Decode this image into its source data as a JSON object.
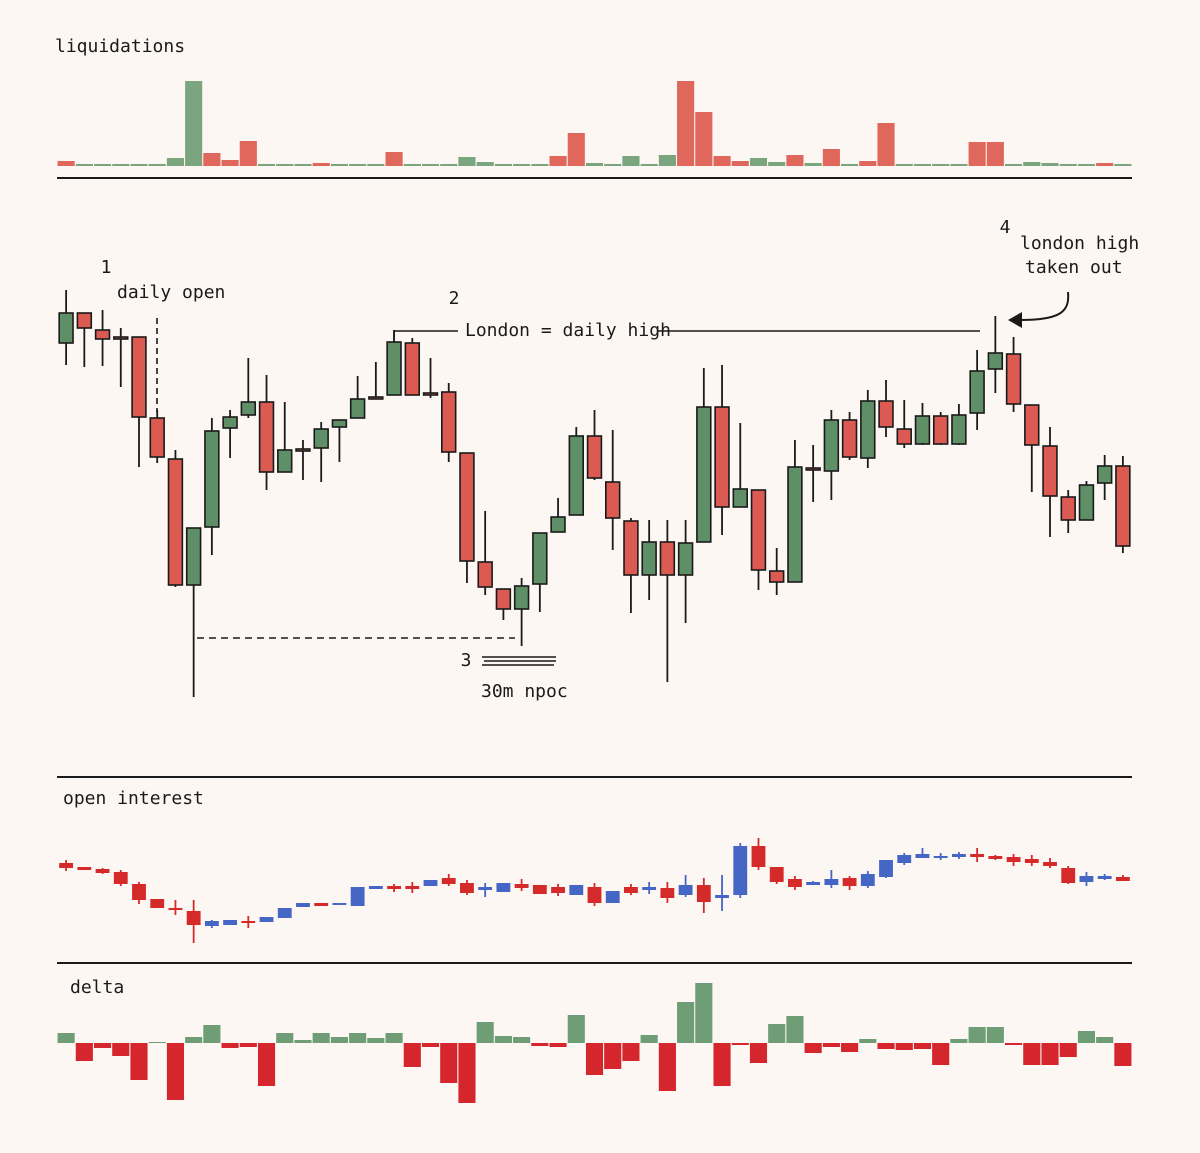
{
  "chart_data": [
    {
      "type": "bar",
      "title": "liquidations",
      "values": [
        5,
        2,
        2,
        2,
        2,
        2,
        8,
        85,
        13,
        6,
        25,
        2,
        2,
        2,
        3,
        2,
        2,
        2,
        14,
        2,
        2,
        2,
        9,
        4,
        2,
        2,
        2,
        10,
        33,
        3,
        2,
        10,
        2,
        11,
        85,
        54,
        10,
        5,
        8,
        4,
        11,
        3,
        17,
        2,
        5,
        43,
        2,
        2,
        2,
        2,
        24,
        24,
        2,
        4,
        3,
        2,
        2,
        3,
        2
      ],
      "colors": [
        "#e0675c",
        "#7aa57e",
        "#7aa57e",
        "#7aa57e",
        "#7aa57e",
        "#7aa57e",
        "#7aa57e",
        "#7aa57e",
        "#e0675c",
        "#e0675c",
        "#e0675c",
        "#7aa57e",
        "#7aa57e",
        "#7aa57e",
        "#e0675c",
        "#7aa57e",
        "#7aa57e",
        "#7aa57e",
        "#e0675c",
        "#7aa57e",
        "#7aa57e",
        "#7aa57e",
        "#7aa57e",
        "#7aa57e",
        "#7aa57e",
        "#7aa57e",
        "#7aa57e",
        "#e0675c",
        "#e0675c",
        "#7aa57e",
        "#7aa57e",
        "#7aa57e",
        "#7aa57e",
        "#7aa57e",
        "#e0675c",
        "#e0675c",
        "#e0675c",
        "#e0675c",
        "#7aa57e",
        "#7aa57e",
        "#e0675c",
        "#7aa57e",
        "#e0675c",
        "#7aa57e",
        "#e0675c",
        "#e0675c",
        "#7aa57e",
        "#7aa57e",
        "#7aa57e",
        "#7aa57e",
        "#e0675c",
        "#e0675c",
        "#7aa57e",
        "#7aa57e",
        "#7aa57e",
        "#7aa57e",
        "#7aa57e",
        "#e0675c",
        "#7aa57e"
      ],
      "ylim": [
        0,
        85
      ]
    },
    {
      "type": "candlestick",
      "open": [
        657,
        687,
        670,
        663,
        663,
        582,
        541,
        415,
        473,
        572,
        585,
        598,
        528,
        551,
        552,
        573,
        582,
        603,
        605,
        657,
        607,
        608,
        547,
        438,
        411,
        391,
        416,
        468,
        485,
        564,
        518,
        479,
        425,
        458,
        425,
        458,
        593,
        493,
        510,
        429,
        418,
        532,
        529,
        580,
        542,
        599,
        571,
        556,
        584,
        556,
        587,
        631,
        646,
        595,
        554,
        503,
        480,
        517,
        534
      ],
      "close": [
        687,
        672,
        661,
        661,
        583,
        543,
        415,
        472,
        569,
        583,
        598,
        528,
        550,
        549,
        571,
        580,
        601,
        601,
        658,
        605,
        605,
        548,
        439,
        413,
        391,
        414,
        467,
        483,
        564,
        522,
        482,
        425,
        458,
        425,
        457,
        593,
        493,
        511,
        430,
        418,
        533,
        530,
        580,
        543,
        599,
        573,
        556,
        584,
        556,
        585,
        629,
        647,
        596,
        555,
        504,
        480,
        515,
        534,
        454
      ],
      "high": [
        710,
        687,
        690,
        672,
        663,
        590,
        550,
        472,
        582,
        590,
        642,
        625,
        598,
        560,
        578,
        580,
        624,
        638,
        670,
        662,
        642,
        617,
        547,
        489,
        411,
        422,
        467,
        502,
        573,
        590,
        570,
        482,
        480,
        480,
        480,
        632,
        635,
        577,
        510,
        452,
        560,
        555,
        590,
        588,
        610,
        620,
        600,
        597,
        588,
        596,
        650,
        684,
        663,
        595,
        573,
        510,
        519,
        545,
        544
      ],
      "low": [
        635,
        633,
        634,
        613,
        533,
        537,
        413,
        303,
        445,
        542,
        582,
        510,
        528,
        520,
        518,
        538,
        582,
        601,
        605,
        605,
        602,
        538,
        417,
        405,
        380,
        354,
        388,
        468,
        485,
        520,
        450,
        387,
        400,
        318,
        377,
        458,
        465,
        493,
        410,
        405,
        418,
        498,
        500,
        540,
        532,
        563,
        552,
        555,
        555,
        555,
        570,
        607,
        588,
        508,
        463,
        467,
        480,
        500,
        447
      ],
      "up_color": "#5f8f67",
      "down_color": "#db5a52",
      "ylim": [
        280,
        720
      ],
      "annotations": [
        "1",
        "daily open",
        "2",
        "London = daily high",
        "3",
        "30m npoc",
        "4",
        "london high",
        "taken out"
      ]
    },
    {
      "type": "candlestick",
      "title": "open interest",
      "open": [
        137,
        133,
        131,
        128,
        116,
        101,
        92,
        89,
        74,
        75,
        79,
        78,
        82,
        93,
        97,
        95,
        94,
        111,
        114,
        114,
        114,
        122,
        117,
        110,
        108,
        116,
        115,
        113,
        105,
        113,
        97,
        113,
        110,
        112,
        105,
        115,
        102,
        105,
        154,
        133,
        121,
        115,
        115,
        122,
        114,
        123,
        137,
        142,
        142,
        143,
        146,
        144,
        143,
        141,
        138,
        132,
        118,
        121,
        123
      ],
      "close": [
        132,
        130,
        127,
        116,
        100,
        92,
        90,
        75,
        79,
        80,
        77,
        83,
        92,
        97,
        94,
        97,
        113,
        114,
        111,
        111,
        120,
        116,
        107,
        113,
        117,
        112,
        106,
        107,
        115,
        97,
        109,
        107,
        113,
        102,
        115,
        98,
        105,
        154,
        133,
        118,
        113,
        118,
        121,
        114,
        126,
        140,
        145,
        146,
        144,
        146,
        143,
        141,
        138,
        137,
        134,
        117,
        124,
        124,
        119
      ],
      "high": [
        140,
        133,
        132,
        130,
        118,
        101,
        100,
        100,
        80,
        80,
        84,
        83,
        92,
        97,
        97,
        97,
        113,
        114,
        116,
        118,
        120,
        126,
        120,
        117,
        117,
        121,
        115,
        116,
        115,
        117,
        109,
        116,
        118,
        118,
        125,
        122,
        125,
        157,
        162,
        133,
        124,
        119,
        130,
        124,
        129,
        140,
        147,
        152,
        147,
        148,
        152,
        145,
        146,
        145,
        142,
        134,
        128,
        126,
        125
      ],
      "low": [
        129,
        130,
        126,
        114,
        96,
        92,
        85,
        57,
        72,
        75,
        72,
        78,
        82,
        93,
        94,
        95,
        94,
        111,
        108,
        107,
        114,
        114,
        105,
        103,
        108,
        109,
        106,
        104,
        105,
        94,
        97,
        105,
        106,
        97,
        103,
        87,
        89,
        102,
        130,
        116,
        110,
        115,
        112,
        110,
        112,
        122,
        135,
        142,
        140,
        141,
        138,
        140,
        134,
        134,
        132,
        116,
        114,
        120,
        119
      ],
      "up_color": "#4666c6",
      "down_color": "#d42a2a",
      "ylim": [
        50,
        170
      ]
    },
    {
      "type": "bar",
      "title": "delta",
      "values": [
        10,
        -18,
        -5,
        -13,
        -37,
        1,
        -57,
        6,
        18,
        -5,
        -4,
        -43,
        10,
        3,
        10,
        6,
        10,
        5,
        10,
        -24,
        -4,
        -40,
        -60,
        21,
        7,
        6,
        -3,
        -4,
        28,
        -32,
        -26,
        -18,
        8,
        -48,
        41,
        60,
        -43,
        -2,
        -20,
        19,
        27,
        -10,
        -4,
        -9,
        4,
        -6,
        -7,
        -6,
        -22,
        4,
        16,
        16,
        -2,
        -22,
        -22,
        -14,
        12,
        6,
        -23
      ],
      "positive_color": "#6f9e76",
      "negative_color": "#d4262c",
      "ylim": [
        -60,
        60
      ]
    }
  ]
}
